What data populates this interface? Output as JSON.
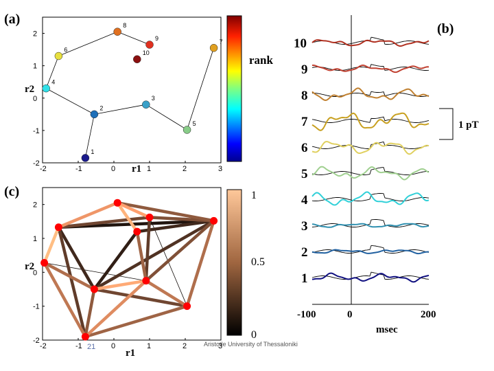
{
  "slide": {
    "footer_text": "Aristotle University of Thessaloniki",
    "page_number": "21"
  },
  "colors": {
    "node_red": "#ff0000",
    "frame": "#000000"
  },
  "chart_data": [
    {
      "id": "a",
      "type": "scatter",
      "panel_label": "(a)",
      "xlabel": "r1",
      "ylabel": "r2",
      "xlim": [
        -2,
        3
      ],
      "ylim": [
        -2,
        2.5
      ],
      "xticks": [
        -2,
        -1,
        0,
        1,
        2,
        3
      ],
      "yticks": [
        -2,
        -1,
        0,
        1,
        2
      ],
      "colorbar": {
        "label": "rank",
        "colors": [
          "#00008f",
          "#0000ff",
          "#0080ff",
          "#00ffff",
          "#80ff80",
          "#ffff00",
          "#ff8000",
          "#ff0000",
          "#800000"
        ]
      },
      "points": [
        {
          "label": "1",
          "x": -0.8,
          "y": -1.85,
          "color": "#1a1a8c"
        },
        {
          "label": "2",
          "x": -0.55,
          "y": -0.5,
          "color": "#1e6fb8"
        },
        {
          "label": "3",
          "x": 0.9,
          "y": -0.2,
          "color": "#3aa0c8"
        },
        {
          "label": "4",
          "x": -1.9,
          "y": 0.3,
          "color": "#30e0e8"
        },
        {
          "label": "5",
          "x": 2.05,
          "y": -0.98,
          "color": "#88cc88"
        },
        {
          "label": "6",
          "x": -1.55,
          "y": 1.3,
          "color": "#e8e040"
        },
        {
          "label": "7",
          "x": 2.8,
          "y": 1.55,
          "color": "#e0a020"
        },
        {
          "label": "8",
          "x": 0.1,
          "y": 2.05,
          "color": "#e07020"
        },
        {
          "label": "9",
          "x": 1.0,
          "y": 1.65,
          "color": "#e03020"
        },
        {
          "label": "10",
          "x": 0.65,
          "y": 1.2,
          "color": "#8b1010"
        }
      ],
      "path": [
        "4",
        "2",
        "3",
        "5",
        "7"
      ],
      "path_upper": [
        "4",
        "6",
        "8",
        "9"
      ],
      "path_drop": [
        "2",
        "1"
      ]
    },
    {
      "id": "c",
      "type": "scatter",
      "panel_label": "(c)",
      "xlabel": "r1",
      "ylabel": "r2",
      "xlim": [
        -2,
        3
      ],
      "ylim": [
        -2,
        2.5
      ],
      "xticks": [
        -2,
        -1,
        0,
        1,
        2,
        3
      ],
      "yticks": [
        -2,
        -1,
        0,
        1,
        2
      ],
      "colorbar": {
        "tick_top": "1",
        "tick_mid": "0.5",
        "tick_bottom": "0"
      },
      "nodes": [
        {
          "id": "1",
          "x": -0.8,
          "y": -1.9
        },
        {
          "id": "2",
          "x": -0.55,
          "y": -0.5
        },
        {
          "id": "3",
          "x": 0.9,
          "y": -0.25
        },
        {
          "id": "4",
          "x": -1.95,
          "y": 0.28
        },
        {
          "id": "5",
          "x": 2.05,
          "y": -1.0
        },
        {
          "id": "6",
          "x": -1.55,
          "y": 1.33
        },
        {
          "id": "7",
          "x": 2.8,
          "y": 1.52
        },
        {
          "id": "8",
          "x": 0.1,
          "y": 2.05
        },
        {
          "id": "9",
          "x": 1.0,
          "y": 1.62
        },
        {
          "id": "10",
          "x": 0.65,
          "y": 1.2
        }
      ],
      "edges": [
        {
          "a": "4",
          "b": "6",
          "w": 0.95
        },
        {
          "a": "4",
          "b": "2",
          "w": 0.55
        },
        {
          "a": "4",
          "b": "1",
          "w": 0.6
        },
        {
          "a": "4",
          "b": "3",
          "w": 0.05
        },
        {
          "a": "6",
          "b": "8",
          "w": 0.75
        },
        {
          "a": "6",
          "b": "1",
          "w": 0.3
        },
        {
          "a": "6",
          "b": "2",
          "w": 0.2
        },
        {
          "a": "6",
          "b": "7",
          "w": 0.1
        },
        {
          "a": "6",
          "b": "9",
          "w": 0.35
        },
        {
          "a": "8",
          "b": "9",
          "w": 0.8
        },
        {
          "a": "8",
          "b": "10",
          "w": 0.9
        },
        {
          "a": "8",
          "b": "7",
          "w": 0.45
        },
        {
          "a": "9",
          "b": "7",
          "w": 0.4
        },
        {
          "a": "9",
          "b": "5",
          "w": 0.05
        },
        {
          "a": "9",
          "b": "3",
          "w": 0.3
        },
        {
          "a": "10",
          "b": "3",
          "w": 0.5
        },
        {
          "a": "10",
          "b": "2",
          "w": 0.15
        },
        {
          "a": "10",
          "b": "7",
          "w": 0.2
        },
        {
          "a": "2",
          "b": "1",
          "w": 0.45
        },
        {
          "a": "2",
          "b": "3",
          "w": 0.85
        },
        {
          "a": "2",
          "b": "5",
          "w": 0.35
        },
        {
          "a": "2",
          "b": "7",
          "w": 0.25
        },
        {
          "a": "3",
          "b": "5",
          "w": 0.6
        },
        {
          "a": "3",
          "b": "1",
          "w": 0.7
        },
        {
          "a": "7",
          "b": "5",
          "w": 0.55
        },
        {
          "a": "1",
          "b": "5",
          "w": 0.5
        },
        {
          "a": "3",
          "b": "7",
          "w": 0.4
        }
      ]
    },
    {
      "id": "b",
      "type": "line",
      "panel_label": "(b)",
      "xlabel": "msec",
      "xlim": [
        -100,
        200
      ],
      "xticks": [
        "-100",
        "0",
        "200"
      ],
      "scale_label": "1 pT",
      "trace_labels": [
        "10",
        "9",
        "8",
        "7",
        "6",
        "5",
        "4",
        "3",
        "2",
        "1"
      ],
      "trace_colors": [
        "#b03020",
        "#c04030",
        "#c08030",
        "#c8a020",
        "#e0d060",
        "#a0d090",
        "#30d0d8",
        "#3090b0",
        "#2060a0",
        "#101080"
      ]
    }
  ]
}
